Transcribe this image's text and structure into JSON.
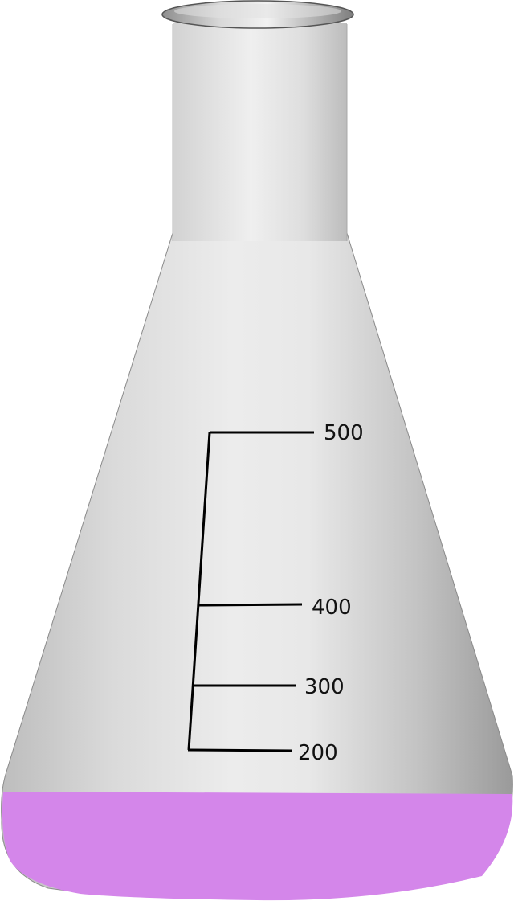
{
  "flask": {
    "glass_color": "#e6e6e6",
    "glass_edge_color": "#9c9c9c",
    "rim_color": "#d4d4d4",
    "liquid_color": "#d486ea",
    "graduation_color": "#000000"
  },
  "graduations": [
    {
      "label": "500"
    },
    {
      "label": "400"
    },
    {
      "label": "300"
    },
    {
      "label": "200"
    }
  ]
}
